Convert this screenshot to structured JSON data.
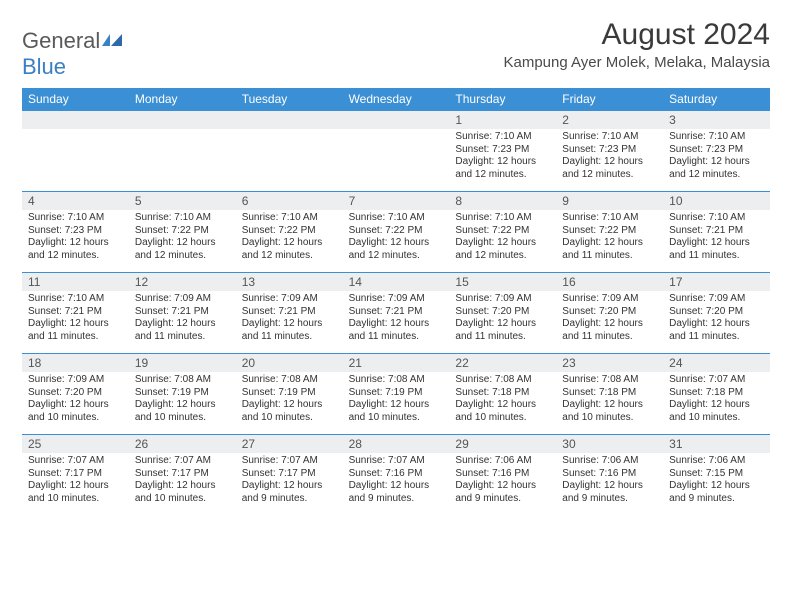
{
  "logo": {
    "text1": "General",
    "text2": "Blue"
  },
  "title": "August 2024",
  "location": "Kampung Ayer Molek, Melaka, Malaysia",
  "dayNames": [
    "Sunday",
    "Monday",
    "Tuesday",
    "Wednesday",
    "Thursday",
    "Friday",
    "Saturday"
  ],
  "colors": {
    "headerBg": "#3b8fd4",
    "headerText": "#ffffff",
    "dayNumBg": "#eceeef",
    "border": "#3b8fd4",
    "text": "#333333"
  },
  "weeks": [
    [
      {
        "n": "",
        "lines": []
      },
      {
        "n": "",
        "lines": []
      },
      {
        "n": "",
        "lines": []
      },
      {
        "n": "",
        "lines": []
      },
      {
        "n": "1",
        "lines": [
          "Sunrise: 7:10 AM",
          "Sunset: 7:23 PM",
          "Daylight: 12 hours",
          "and 12 minutes."
        ]
      },
      {
        "n": "2",
        "lines": [
          "Sunrise: 7:10 AM",
          "Sunset: 7:23 PM",
          "Daylight: 12 hours",
          "and 12 minutes."
        ]
      },
      {
        "n": "3",
        "lines": [
          "Sunrise: 7:10 AM",
          "Sunset: 7:23 PM",
          "Daylight: 12 hours",
          "and 12 minutes."
        ]
      }
    ],
    [
      {
        "n": "4",
        "lines": [
          "Sunrise: 7:10 AM",
          "Sunset: 7:23 PM",
          "Daylight: 12 hours",
          "and 12 minutes."
        ]
      },
      {
        "n": "5",
        "lines": [
          "Sunrise: 7:10 AM",
          "Sunset: 7:22 PM",
          "Daylight: 12 hours",
          "and 12 minutes."
        ]
      },
      {
        "n": "6",
        "lines": [
          "Sunrise: 7:10 AM",
          "Sunset: 7:22 PM",
          "Daylight: 12 hours",
          "and 12 minutes."
        ]
      },
      {
        "n": "7",
        "lines": [
          "Sunrise: 7:10 AM",
          "Sunset: 7:22 PM",
          "Daylight: 12 hours",
          "and 12 minutes."
        ]
      },
      {
        "n": "8",
        "lines": [
          "Sunrise: 7:10 AM",
          "Sunset: 7:22 PM",
          "Daylight: 12 hours",
          "and 12 minutes."
        ]
      },
      {
        "n": "9",
        "lines": [
          "Sunrise: 7:10 AM",
          "Sunset: 7:22 PM",
          "Daylight: 12 hours",
          "and 11 minutes."
        ]
      },
      {
        "n": "10",
        "lines": [
          "Sunrise: 7:10 AM",
          "Sunset: 7:21 PM",
          "Daylight: 12 hours",
          "and 11 minutes."
        ]
      }
    ],
    [
      {
        "n": "11",
        "lines": [
          "Sunrise: 7:10 AM",
          "Sunset: 7:21 PM",
          "Daylight: 12 hours",
          "and 11 minutes."
        ]
      },
      {
        "n": "12",
        "lines": [
          "Sunrise: 7:09 AM",
          "Sunset: 7:21 PM",
          "Daylight: 12 hours",
          "and 11 minutes."
        ]
      },
      {
        "n": "13",
        "lines": [
          "Sunrise: 7:09 AM",
          "Sunset: 7:21 PM",
          "Daylight: 12 hours",
          "and 11 minutes."
        ]
      },
      {
        "n": "14",
        "lines": [
          "Sunrise: 7:09 AM",
          "Sunset: 7:21 PM",
          "Daylight: 12 hours",
          "and 11 minutes."
        ]
      },
      {
        "n": "15",
        "lines": [
          "Sunrise: 7:09 AM",
          "Sunset: 7:20 PM",
          "Daylight: 12 hours",
          "and 11 minutes."
        ]
      },
      {
        "n": "16",
        "lines": [
          "Sunrise: 7:09 AM",
          "Sunset: 7:20 PM",
          "Daylight: 12 hours",
          "and 11 minutes."
        ]
      },
      {
        "n": "17",
        "lines": [
          "Sunrise: 7:09 AM",
          "Sunset: 7:20 PM",
          "Daylight: 12 hours",
          "and 11 minutes."
        ]
      }
    ],
    [
      {
        "n": "18",
        "lines": [
          "Sunrise: 7:09 AM",
          "Sunset: 7:20 PM",
          "Daylight: 12 hours",
          "and 10 minutes."
        ]
      },
      {
        "n": "19",
        "lines": [
          "Sunrise: 7:08 AM",
          "Sunset: 7:19 PM",
          "Daylight: 12 hours",
          "and 10 minutes."
        ]
      },
      {
        "n": "20",
        "lines": [
          "Sunrise: 7:08 AM",
          "Sunset: 7:19 PM",
          "Daylight: 12 hours",
          "and 10 minutes."
        ]
      },
      {
        "n": "21",
        "lines": [
          "Sunrise: 7:08 AM",
          "Sunset: 7:19 PM",
          "Daylight: 12 hours",
          "and 10 minutes."
        ]
      },
      {
        "n": "22",
        "lines": [
          "Sunrise: 7:08 AM",
          "Sunset: 7:18 PM",
          "Daylight: 12 hours",
          "and 10 minutes."
        ]
      },
      {
        "n": "23",
        "lines": [
          "Sunrise: 7:08 AM",
          "Sunset: 7:18 PM",
          "Daylight: 12 hours",
          "and 10 minutes."
        ]
      },
      {
        "n": "24",
        "lines": [
          "Sunrise: 7:07 AM",
          "Sunset: 7:18 PM",
          "Daylight: 12 hours",
          "and 10 minutes."
        ]
      }
    ],
    [
      {
        "n": "25",
        "lines": [
          "Sunrise: 7:07 AM",
          "Sunset: 7:17 PM",
          "Daylight: 12 hours",
          "and 10 minutes."
        ]
      },
      {
        "n": "26",
        "lines": [
          "Sunrise: 7:07 AM",
          "Sunset: 7:17 PM",
          "Daylight: 12 hours",
          "and 10 minutes."
        ]
      },
      {
        "n": "27",
        "lines": [
          "Sunrise: 7:07 AM",
          "Sunset: 7:17 PM",
          "Daylight: 12 hours",
          "and 9 minutes."
        ]
      },
      {
        "n": "28",
        "lines": [
          "Sunrise: 7:07 AM",
          "Sunset: 7:16 PM",
          "Daylight: 12 hours",
          "and 9 minutes."
        ]
      },
      {
        "n": "29",
        "lines": [
          "Sunrise: 7:06 AM",
          "Sunset: 7:16 PM",
          "Daylight: 12 hours",
          "and 9 minutes."
        ]
      },
      {
        "n": "30",
        "lines": [
          "Sunrise: 7:06 AM",
          "Sunset: 7:16 PM",
          "Daylight: 12 hours",
          "and 9 minutes."
        ]
      },
      {
        "n": "31",
        "lines": [
          "Sunrise: 7:06 AM",
          "Sunset: 7:15 PM",
          "Daylight: 12 hours",
          "and 9 minutes."
        ]
      }
    ]
  ]
}
